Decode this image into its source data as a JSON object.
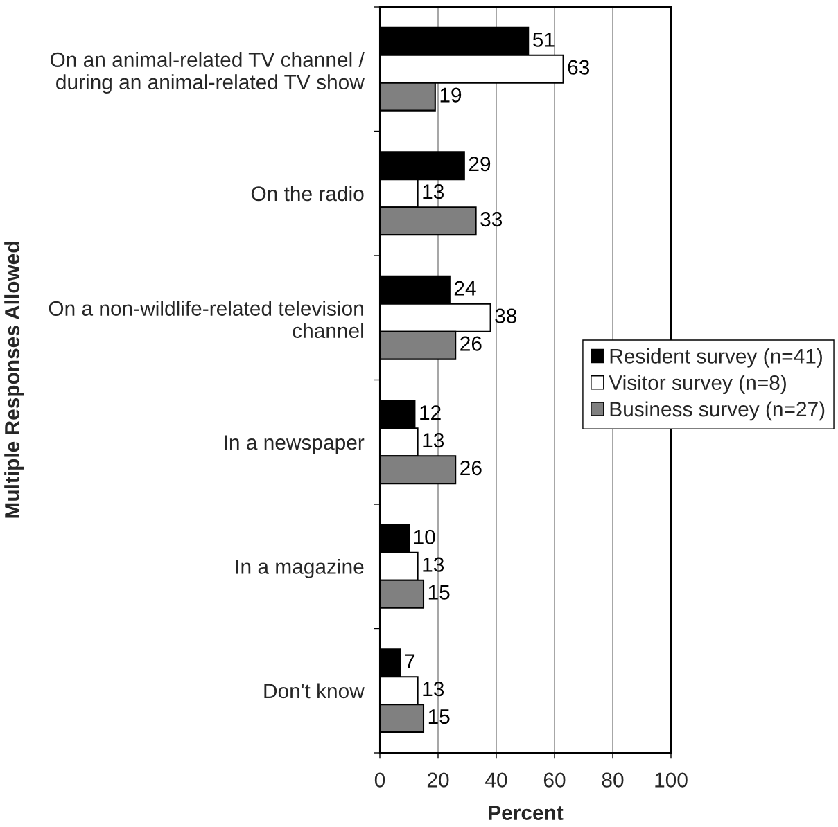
{
  "chart_data": {
    "type": "bar",
    "orientation": "horizontal",
    "xlabel": "Percent",
    "ylabel": "Multiple Responses Allowed",
    "categories": [
      "On an animal-related TV channel /\nduring an animal-related TV show",
      "On the radio",
      "On a non-wildlife-related television\nchannel",
      "In a newspaper",
      "In a magazine",
      "Don't know"
    ],
    "series": [
      {
        "name": "Resident survey (n=41)",
        "color": "#000000",
        "values": [
          51,
          29,
          24,
          12,
          10,
          7
        ]
      },
      {
        "name": "Visitor survey (n=8)",
        "color": "#ffffff",
        "values": [
          63,
          13,
          38,
          13,
          13,
          13
        ]
      },
      {
        "name": "Business survey (n=27)",
        "color": "#808080",
        "values": [
          19,
          33,
          26,
          26,
          15,
          15
        ]
      }
    ],
    "xlim": [
      0,
      100
    ],
    "xticks": [
      0,
      20,
      40,
      60,
      80,
      100
    ],
    "grid": "x",
    "legend": "right",
    "data_labels": true
  }
}
